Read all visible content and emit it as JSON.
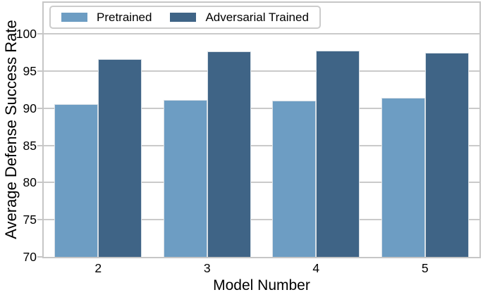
{
  "chart_data": {
    "type": "bar",
    "title": "",
    "xlabel": "Model Number",
    "ylabel": "Average Defense Success Rate",
    "categories": [
      "2",
      "3",
      "4",
      "5"
    ],
    "series": [
      {
        "name": "Pretrained",
        "color": "#6d9dc3",
        "values": [
          90.6,
          91.1,
          91.0,
          91.4
        ]
      },
      {
        "name": "Adversarial Trained",
        "color": "#3f6486",
        "values": [
          96.6,
          97.7,
          97.8,
          97.5
        ]
      }
    ],
    "ylim": [
      70,
      104.2
    ],
    "yticks": [
      70,
      75,
      80,
      85,
      90,
      95,
      100
    ],
    "grid": true,
    "legend_position": "upper-left"
  },
  "style": {
    "background": "#ffffff",
    "grid_color": "#cacaca",
    "spine_color": "#c6c6c6",
    "text_color": "#000000",
    "bar_edge_color": "#d7dfe6",
    "legend_border_color": "#cccccc"
  }
}
